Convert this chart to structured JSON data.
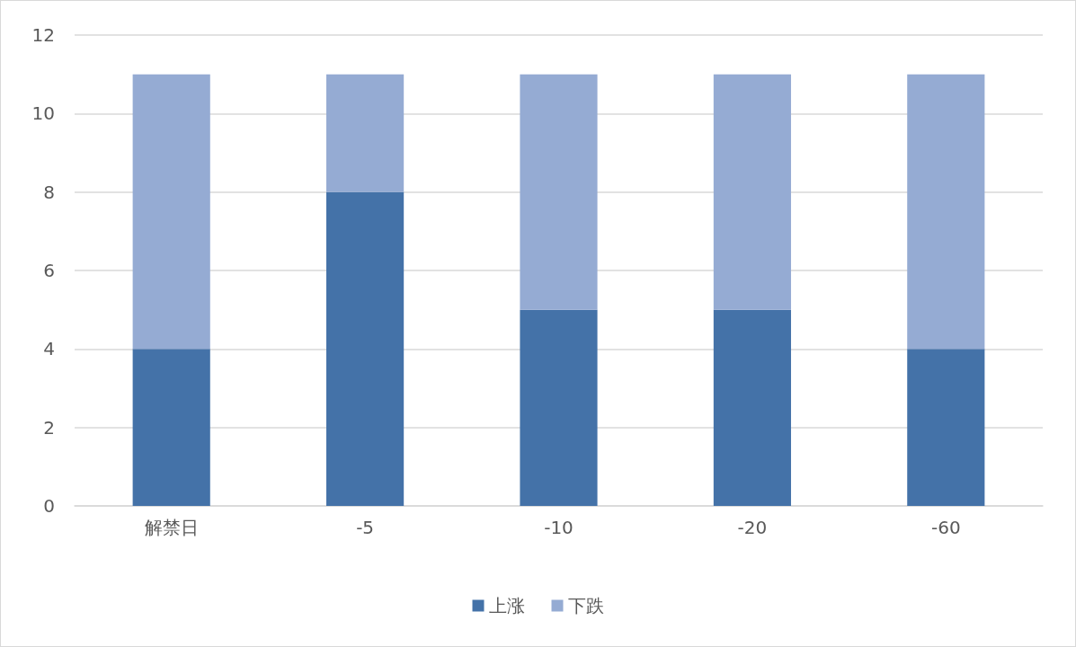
{
  "chart_data": {
    "type": "bar",
    "stacked": true,
    "categories": [
      "解禁日",
      "-5",
      "-10",
      "-20",
      "-60"
    ],
    "series": [
      {
        "name": "上涨",
        "color": "#4472a8",
        "values": [
          4,
          8,
          5,
          5,
          4
        ]
      },
      {
        "name": "下跌",
        "color": "#95abd3",
        "values": [
          7,
          3,
          6,
          6,
          7
        ]
      }
    ],
    "ylim": [
      0,
      12
    ],
    "yticks": [
      0,
      2,
      4,
      6,
      8,
      10,
      12
    ],
    "grid": "y",
    "legend": "bottom"
  }
}
